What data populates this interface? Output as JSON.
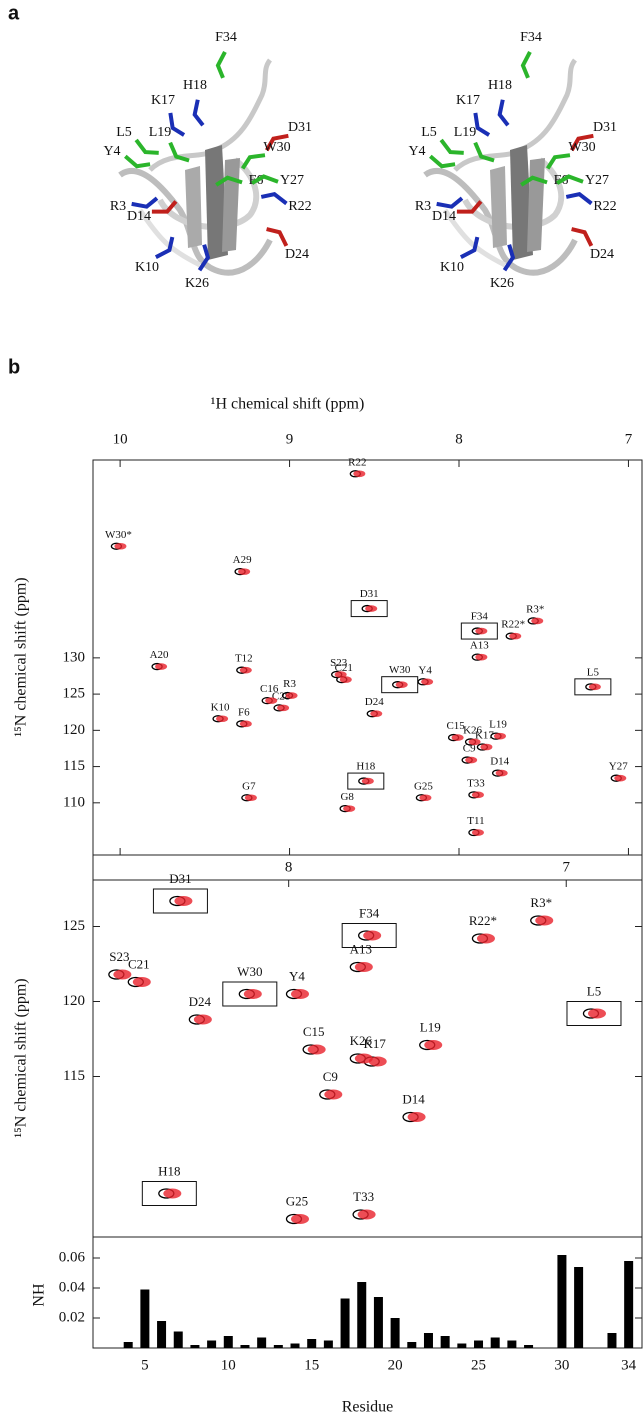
{
  "panel_labels": [
    "a",
    "b"
  ],
  "structure": {
    "residues": [
      {
        "label": "F34",
        "color": "#2bb52b"
      },
      {
        "label": "H18",
        "color": "#1a2fb5"
      },
      {
        "label": "K17",
        "color": "#1a2fb5"
      },
      {
        "label": "D31",
        "color": "#c0201c"
      },
      {
        "label": "L5",
        "color": "#2bb52b"
      },
      {
        "label": "L19",
        "color": "#2bb52b"
      },
      {
        "label": "Y4",
        "color": "#2bb52b"
      },
      {
        "label": "W30",
        "color": "#2bb52b"
      },
      {
        "label": "F6",
        "color": "#2bb52b"
      },
      {
        "label": "Y27",
        "color": "#2bb52b"
      },
      {
        "label": "R3",
        "color": "#1a2fb5"
      },
      {
        "label": "D14",
        "color": "#c0201c"
      },
      {
        "label": "R22",
        "color": "#1a2fb5"
      },
      {
        "label": "D24",
        "color": "#c0201c"
      },
      {
        "label": "K10",
        "color": "#1a2fb5"
      },
      {
        "label": "K26",
        "color": "#1a2fb5"
      }
    ]
  },
  "chart_data": [
    {
      "type": "scatter",
      "x_label": "¹H chemical shift (ppm)",
      "y_label": "¹⁵N chemical shift (ppm)",
      "point_labels": [
        "T11",
        "G7",
        "G8",
        "G25",
        "T33",
        "H18",
        "Y27",
        "D14",
        "C9",
        "K17",
        "K26",
        "C15",
        "L19",
        "F6",
        "K10",
        "D24",
        "C28",
        "C16",
        "R3",
        "L5",
        "W30",
        "Y4",
        "C21",
        "S23",
        "T12",
        "A20",
        "A13",
        "R22*",
        "F34",
        "R3*",
        "D31",
        "A29",
        "W30*",
        "R22"
      ],
      "x": [
        7.9,
        9.24,
        8.66,
        8.21,
        7.9,
        8.55,
        7.06,
        7.76,
        7.94,
        7.85,
        7.92,
        8.02,
        7.77,
        9.27,
        9.41,
        8.5,
        9.05,
        9.12,
        9.0,
        7.21,
        8.35,
        8.2,
        8.68,
        8.71,
        9.27,
        9.77,
        7.88,
        7.68,
        7.88,
        7.55,
        8.53,
        9.28,
        10.01,
        8.6
      ],
      "values": [
        105.9,
        110.7,
        109.2,
        110.7,
        111.1,
        113.0,
        113.4,
        114.1,
        115.9,
        117.7,
        118.4,
        119.0,
        119.2,
        120.9,
        121.6,
        122.3,
        123.1,
        124.1,
        124.8,
        126.0,
        126.3,
        126.7,
        127.0,
        127.7,
        128.3,
        128.8,
        130.1,
        133.0,
        133.7,
        135.1,
        136.8,
        141.9,
        145.4,
        155.4
      ],
      "boxed": [
        false,
        false,
        false,
        false,
        false,
        true,
        false,
        false,
        false,
        false,
        false,
        false,
        false,
        false,
        false,
        false,
        false,
        false,
        false,
        true,
        true,
        false,
        false,
        false,
        false,
        false,
        false,
        false,
        true,
        false,
        true,
        false,
        false,
        false
      ],
      "color": "#e8202a",
      "outline_color": "#000000",
      "xlim": [
        10.16,
        6.92
      ],
      "ylim": [
        102.8,
        157.3
      ],
      "xticks": [
        10,
        9,
        8,
        7
      ],
      "yticks": [
        110,
        115,
        120,
        125,
        130
      ]
    },
    {
      "type": "scatter",
      "y_label": "¹⁵N chemical shift (ppm)",
      "point_labels": [
        "H18",
        "G25",
        "T33",
        "D14",
        "C9",
        "C15",
        "K17",
        "K26",
        "L19",
        "D24",
        "C21",
        "S23",
        "W30",
        "Y4",
        "L5",
        "A13",
        "F34",
        "R22*",
        "R3*",
        "D31"
      ],
      "x": [
        8.43,
        7.97,
        7.73,
        7.55,
        7.85,
        7.91,
        7.69,
        7.74,
        7.49,
        8.32,
        8.54,
        8.61,
        8.14,
        7.97,
        6.9,
        7.74,
        7.71,
        7.3,
        7.09,
        8.39
      ],
      "values": [
        107.2,
        105.5,
        105.8,
        112.3,
        113.8,
        116.8,
        116.0,
        116.2,
        117.1,
        118.8,
        121.3,
        121.8,
        120.5,
        120.5,
        119.2,
        122.3,
        124.4,
        124.2,
        125.4,
        126.7
      ],
      "boxed": [
        true,
        false,
        false,
        false,
        false,
        false,
        false,
        false,
        false,
        false,
        false,
        false,
        true,
        false,
        true,
        false,
        true,
        false,
        false,
        true
      ],
      "color": "#e8202a",
      "outline_color": "#000000",
      "xlim": [
        8.705,
        6.727
      ],
      "ylim": [
        104.3,
        128.1
      ],
      "xticks": [
        8,
        7
      ],
      "yticks": [
        115,
        120,
        125
      ]
    },
    {
      "type": "bar",
      "x_label": "Residue",
      "y_label": "NH",
      "color": "#000000",
      "x": [
        4,
        5,
        6,
        7,
        8,
        9,
        10,
        11,
        12,
        13,
        14,
        15,
        16,
        17,
        18,
        19,
        20,
        21,
        22,
        23,
        24,
        25,
        26,
        27,
        28,
        30,
        31,
        33,
        34
      ],
      "values": [
        0.004,
        0.039,
        0.018,
        0.011,
        0.002,
        0.005,
        0.008,
        0.002,
        0.007,
        0.002,
        0.003,
        0.006,
        0.005,
        0.033,
        0.044,
        0.034,
        0.02,
        0.004,
        0.01,
        0.008,
        0.003,
        0.005,
        0.007,
        0.005,
        0.002,
        0.062,
        0.054,
        0.01,
        0.058
      ],
      "xlim": [
        1.89,
        34.8
      ],
      "ylim": [
        0,
        0.074
      ],
      "xticks": [
        5,
        10,
        15,
        20,
        25,
        30,
        34
      ],
      "yticks": [
        0.02,
        0.04,
        0.06
      ]
    }
  ]
}
